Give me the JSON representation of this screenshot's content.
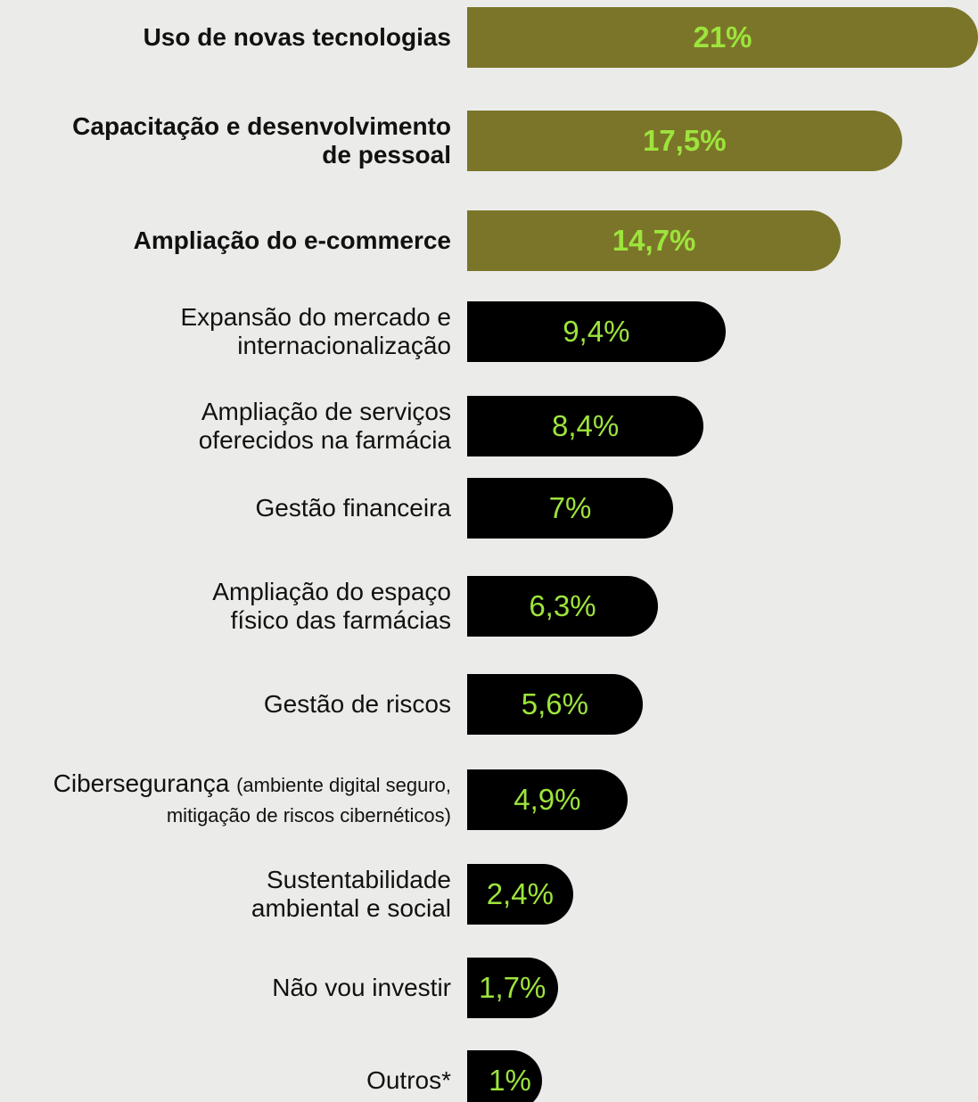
{
  "chart_data": {
    "type": "bar",
    "orientation": "horizontal",
    "categories": [
      "Uso de novas tecnologias",
      "Capacitação e desenvolvimento de pessoal",
      "Ampliação do e-commerce",
      "Expansão do mercado e internacionalização",
      "Ampliação de serviços oferecidos na farmácia",
      "Gestão financeira",
      "Ampliação do espaço físico das farmácias",
      "Gestão de riscos",
      "Cibersegurança",
      "Sustentabilidade ambiental e social",
      "Não vou investir",
      "Outros*"
    ],
    "category_notes": [
      null,
      null,
      null,
      null,
      null,
      null,
      null,
      null,
      "(ambiente digital seguro, mitigação de riscos cibernéticos)",
      null,
      null,
      null
    ],
    "values": [
      21,
      17.5,
      14.7,
      9.4,
      8.4,
      7,
      6.3,
      5.6,
      4.9,
      2.4,
      1.7,
      1
    ],
    "value_labels": [
      "21%",
      "17,5%",
      "14,7%",
      "9,4%",
      "8,4%",
      "7%",
      "6,3%",
      "5,6%",
      "4,9%",
      "2,4%",
      "1,7%",
      "1%"
    ],
    "highlighted": [
      true,
      true,
      true,
      false,
      false,
      false,
      false,
      false,
      false,
      false,
      false,
      false
    ],
    "color": "#000000",
    "highlight_color": "#7b7529",
    "label_color": "#9de43c",
    "xlim": [
      0,
      21
    ]
  }
}
